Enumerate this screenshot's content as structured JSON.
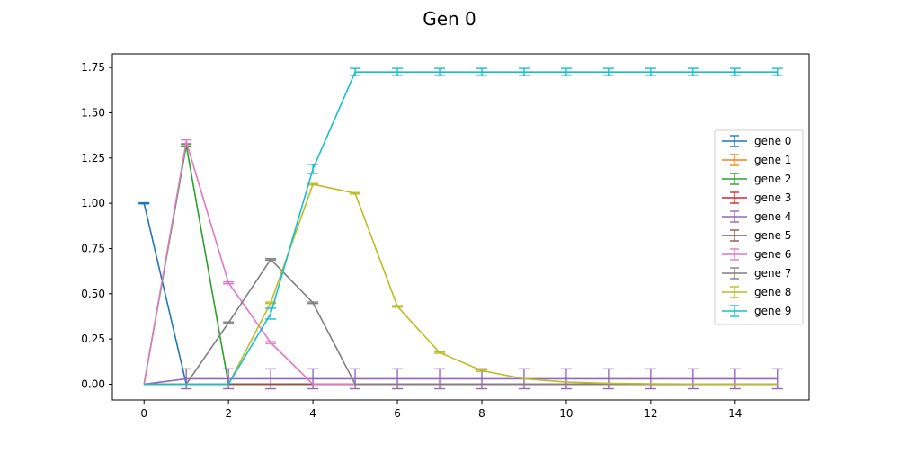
{
  "chart_data": {
    "type": "line",
    "title": "Gen 0",
    "xlabel": "",
    "ylabel": "",
    "xlim": [
      -0.75,
      15.75
    ],
    "ylim": [
      -0.087,
      1.825
    ],
    "x_ticks": [
      0,
      2,
      4,
      6,
      8,
      10,
      12,
      14
    ],
    "y_ticks": [
      0.0,
      0.25,
      0.5,
      0.75,
      1.0,
      1.25,
      1.5,
      1.75
    ],
    "x_tick_labels": [
      "0",
      "2",
      "4",
      "6",
      "8",
      "10",
      "12",
      "14"
    ],
    "y_tick_labels": [
      "0.00",
      "0.25",
      "0.50",
      "0.75",
      "1.00",
      "1.25",
      "1.50",
      "1.75"
    ],
    "grid": false,
    "legend_position": "center-right",
    "x": [
      0,
      1,
      2,
      3,
      4,
      5,
      6,
      7,
      8,
      9,
      10,
      11,
      12,
      13,
      14,
      15
    ],
    "series": [
      {
        "name": "gene 0",
        "color": "#1f77b4",
        "values": [
          1.0,
          0.0,
          0.0,
          0.0,
          0.0,
          0.0,
          0.0,
          0.0,
          0.0,
          0.0,
          0.0,
          0.0,
          0.0,
          0.0,
          0.0,
          0.0
        ],
        "errors": [
          0.003,
          0,
          0,
          0,
          0,
          0,
          0,
          0,
          0,
          0,
          0,
          0,
          0,
          0,
          0,
          0
        ]
      },
      {
        "name": "gene 1",
        "color": "#ff7f0e",
        "values": [
          0.0,
          0.0,
          0.0,
          0.0,
          0.0,
          0.0,
          0.0,
          0.0,
          0.0,
          0.0,
          0.0,
          0.0,
          0.0,
          0.0,
          0.0,
          0.0
        ],
        "errors": [
          0,
          0,
          0,
          0,
          0,
          0,
          0,
          0,
          0,
          0,
          0,
          0,
          0,
          0,
          0,
          0
        ]
      },
      {
        "name": "gene 2",
        "color": "#2ca02c",
        "values": [
          0.0,
          1.32,
          0.0,
          0.0,
          0.0,
          0.0,
          0.0,
          0.0,
          0.0,
          0.0,
          0.0,
          0.0,
          0.0,
          0.0,
          0.0,
          0.0
        ],
        "errors": [
          0,
          0.005,
          0,
          0,
          0,
          0,
          0,
          0,
          0,
          0,
          0,
          0,
          0,
          0,
          0,
          0
        ]
      },
      {
        "name": "gene 3",
        "color": "#d62728",
        "values": [
          0.0,
          0.0,
          0.0,
          0.0,
          0.0,
          0.0,
          0.0,
          0.0,
          0.0,
          0.0,
          0.0,
          0.0,
          0.0,
          0.0,
          0.0,
          0.0
        ],
        "errors": [
          0,
          0,
          0,
          0,
          0,
          0,
          0,
          0,
          0,
          0,
          0,
          0,
          0,
          0,
          0,
          0
        ]
      },
      {
        "name": "gene 4",
        "color": "#9467bd",
        "values": [
          0.0,
          0.03,
          0.03,
          0.03,
          0.03,
          0.03,
          0.03,
          0.03,
          0.03,
          0.03,
          0.03,
          0.03,
          0.03,
          0.03,
          0.03,
          0.03
        ],
        "errors": [
          0,
          0.055,
          0.055,
          0.055,
          0.055,
          0.055,
          0.055,
          0.055,
          0.055,
          0.055,
          0.055,
          0.055,
          0.055,
          0.055,
          0.055,
          0.055
        ]
      },
      {
        "name": "gene 5",
        "color": "#8c564b",
        "values": [
          0.0,
          0.0,
          0.0,
          0.0,
          0.0,
          0.0,
          0.0,
          0.0,
          0.0,
          0.0,
          0.0,
          0.0,
          0.0,
          0.0,
          0.0,
          0.0
        ],
        "errors": [
          0,
          0,
          0,
          0,
          0,
          0,
          0,
          0,
          0,
          0,
          0,
          0,
          0,
          0,
          0,
          0
        ]
      },
      {
        "name": "gene 6",
        "color": "#e377c2",
        "values": [
          0.0,
          1.34,
          0.56,
          0.23,
          0.0,
          0.0,
          0.0,
          0.0,
          0.0,
          0.0,
          0.0,
          0.0,
          0.0,
          0.0,
          0.0,
          0.0
        ],
        "errors": [
          0,
          0.01,
          0.005,
          0.005,
          0,
          0,
          0,
          0,
          0,
          0,
          0,
          0,
          0,
          0,
          0,
          0
        ]
      },
      {
        "name": "gene 7",
        "color": "#7f7f7f",
        "values": [
          0.0,
          0.0,
          0.34,
          0.69,
          0.45,
          0.0,
          0.0,
          0.0,
          0.0,
          0.0,
          0.0,
          0.0,
          0.0,
          0.0,
          0.0,
          0.0
        ],
        "errors": [
          0,
          0,
          0.004,
          0.004,
          0.004,
          0,
          0,
          0,
          0,
          0,
          0,
          0,
          0,
          0,
          0,
          0
        ]
      },
      {
        "name": "gene 8",
        "color": "#bcbd22",
        "values": [
          0.0,
          0.0,
          0.0,
          0.45,
          1.105,
          1.055,
          0.43,
          0.175,
          0.075,
          0.03,
          0.012,
          0.005,
          0.002,
          0.001,
          0.0,
          0.0
        ],
        "errors": [
          0,
          0,
          0,
          0.004,
          0.004,
          0.004,
          0.004,
          0.004,
          0.004,
          0,
          0,
          0,
          0,
          0,
          0,
          0
        ]
      },
      {
        "name": "gene 9",
        "color": "#17becf",
        "values": [
          0.0,
          0.0,
          0.0,
          0.39,
          1.19,
          1.725,
          1.725,
          1.725,
          1.725,
          1.725,
          1.725,
          1.725,
          1.725,
          1.725,
          1.725,
          1.725
        ],
        "errors": [
          0,
          0,
          0,
          0.03,
          0.025,
          0.02,
          0.02,
          0.02,
          0.02,
          0.02,
          0.02,
          0.02,
          0.02,
          0.02,
          0.02,
          0.02
        ]
      }
    ]
  }
}
